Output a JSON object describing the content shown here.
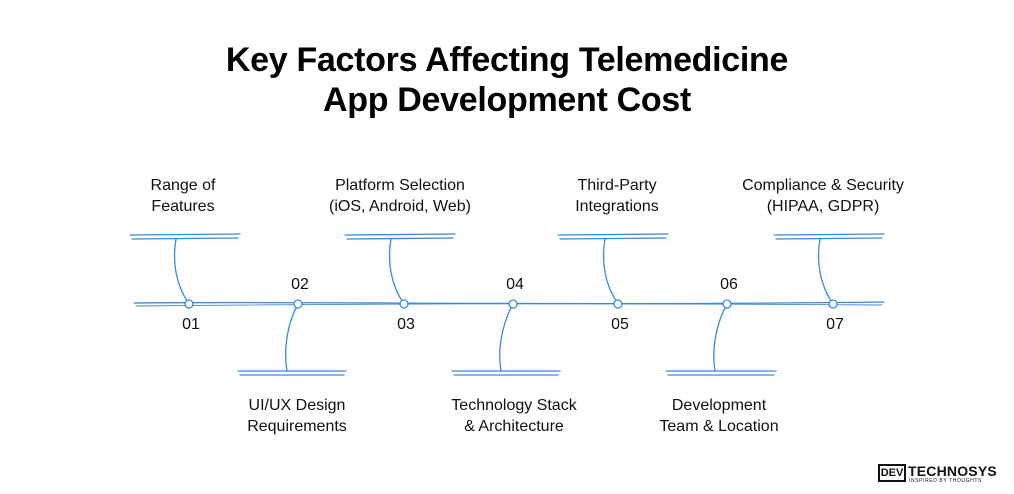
{
  "title": {
    "line1": "Key Factors Affecting Telemedicine",
    "line2": "App Development Cost"
  },
  "colors": {
    "line": "#3b8ad8",
    "text": "#111111"
  },
  "factors": [
    {
      "number": "01",
      "line1": "Range of",
      "line2": "Features"
    },
    {
      "number": "02",
      "line1": "UI/UX Design",
      "line2": "Requirements"
    },
    {
      "number": "03",
      "line1": "Platform Selection",
      "line2": "(iOS, Android, Web)"
    },
    {
      "number": "04",
      "line1": "Technology Stack",
      "line2": "& Architecture"
    },
    {
      "number": "05",
      "line1": "Third-Party",
      "line2": "Integrations"
    },
    {
      "number": "06",
      "line1": "Development",
      "line2": "Team & Location"
    },
    {
      "number": "07",
      "line1": "Compliance & Security",
      "line2": "(HIPAA, GDPR)"
    }
  ],
  "logo": {
    "box": "DEV",
    "name": "TECHNOSYS",
    "tagline": "INSPIRED BY THOUGHTS"
  }
}
